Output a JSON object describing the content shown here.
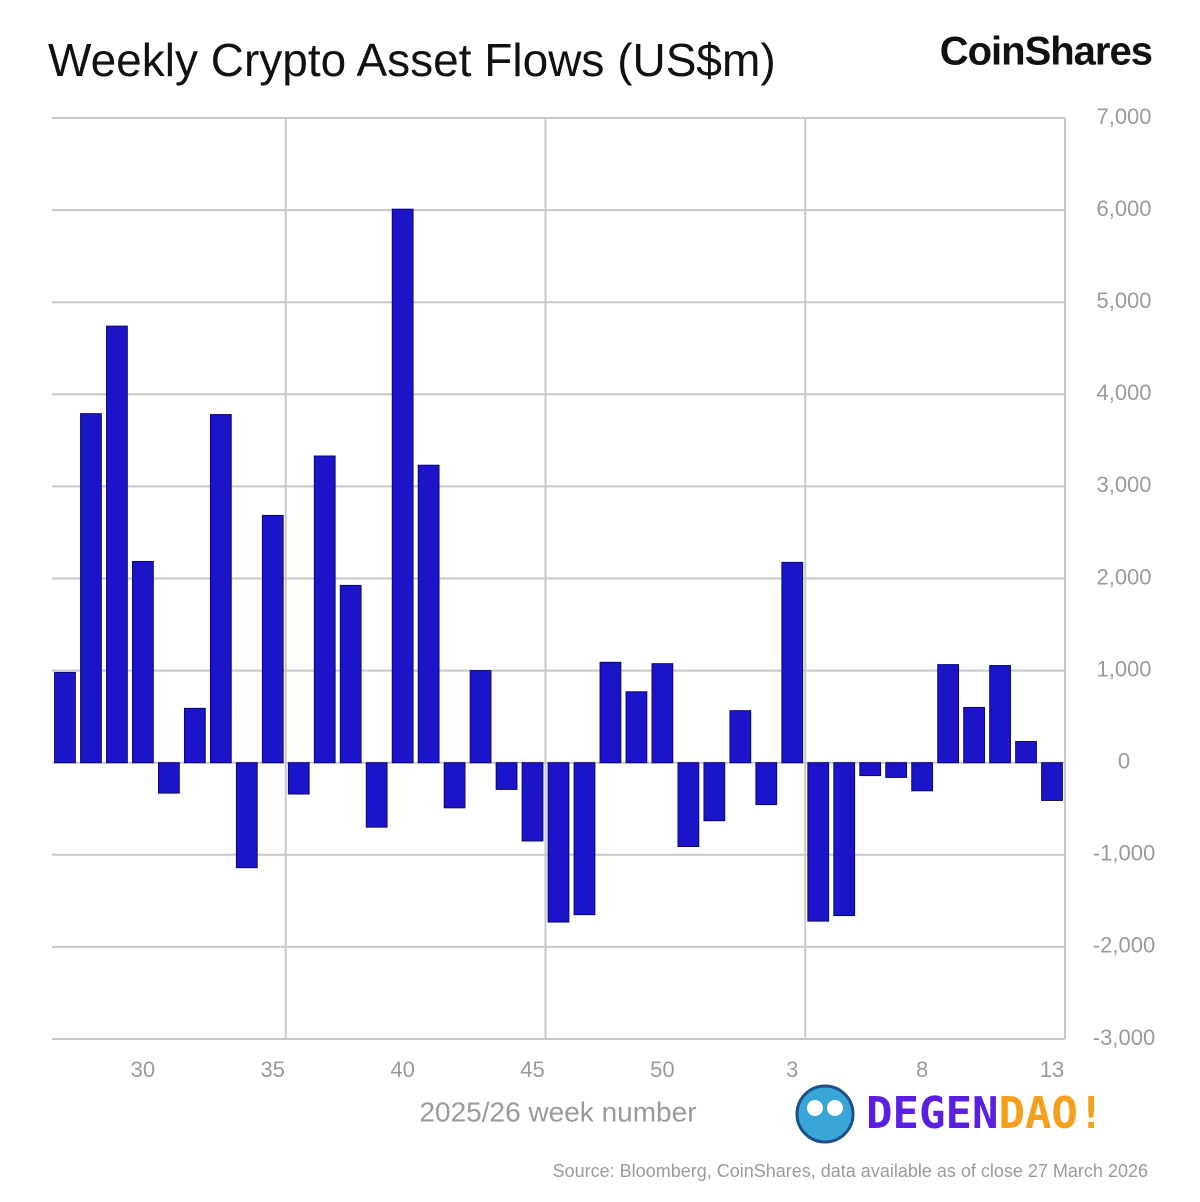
{
  "chart_data": {
    "type": "bar",
    "title": "Weekly Crypto Asset Flows (US$m)",
    "brand": "CoinShares",
    "watermark": [
      "DEGEN",
      "DAO!"
    ],
    "x_label": "2025/26 week number",
    "source": "Source: Bloomberg, CoinShares, data available as of close 27 March 2026",
    "categories": [
      null,
      null,
      null,
      "30",
      null,
      null,
      null,
      null,
      "35",
      null,
      null,
      null,
      null,
      "40",
      null,
      null,
      null,
      null,
      "45",
      null,
      null,
      null,
      null,
      "50",
      null,
      null,
      null,
      null,
      "3",
      null,
      null,
      null,
      null,
      "8",
      null,
      null,
      null,
      null,
      "13"
    ],
    "values": [
      980,
      3790,
      4740,
      2185,
      -330,
      590,
      3780,
      -1140,
      2685,
      -340,
      3330,
      1925,
      -700,
      6010,
      3230,
      -490,
      1000,
      -290,
      -850,
      -1730,
      -1650,
      1090,
      770,
      1075,
      -910,
      -630,
      565,
      -455,
      2175,
      -1720,
      -1660,
      -140,
      -160,
      -305,
      1065,
      600,
      1055,
      230,
      -410
    ],
    "color": "#1c14c8",
    "ylim": [
      -3000,
      7000
    ],
    "yticks": [
      {
        "value": -3000,
        "label": "-3,000"
      },
      {
        "value": -2000,
        "label": "-2,000"
      },
      {
        "value": -1000,
        "label": "-1,000"
      },
      0,
      {
        "value": 1000,
        "label": "1,000"
      },
      {
        "value": 2000,
        "label": "2,000"
      },
      {
        "value": 3000,
        "label": "3,000"
      },
      {
        "value": 4000,
        "label": "4,000"
      },
      {
        "value": 5000,
        "label": "5,000"
      },
      {
        "value": 6000,
        "label": "6,000"
      },
      {
        "value": 7000,
        "label": "7,000"
      }
    ],
    "grid": true
  }
}
